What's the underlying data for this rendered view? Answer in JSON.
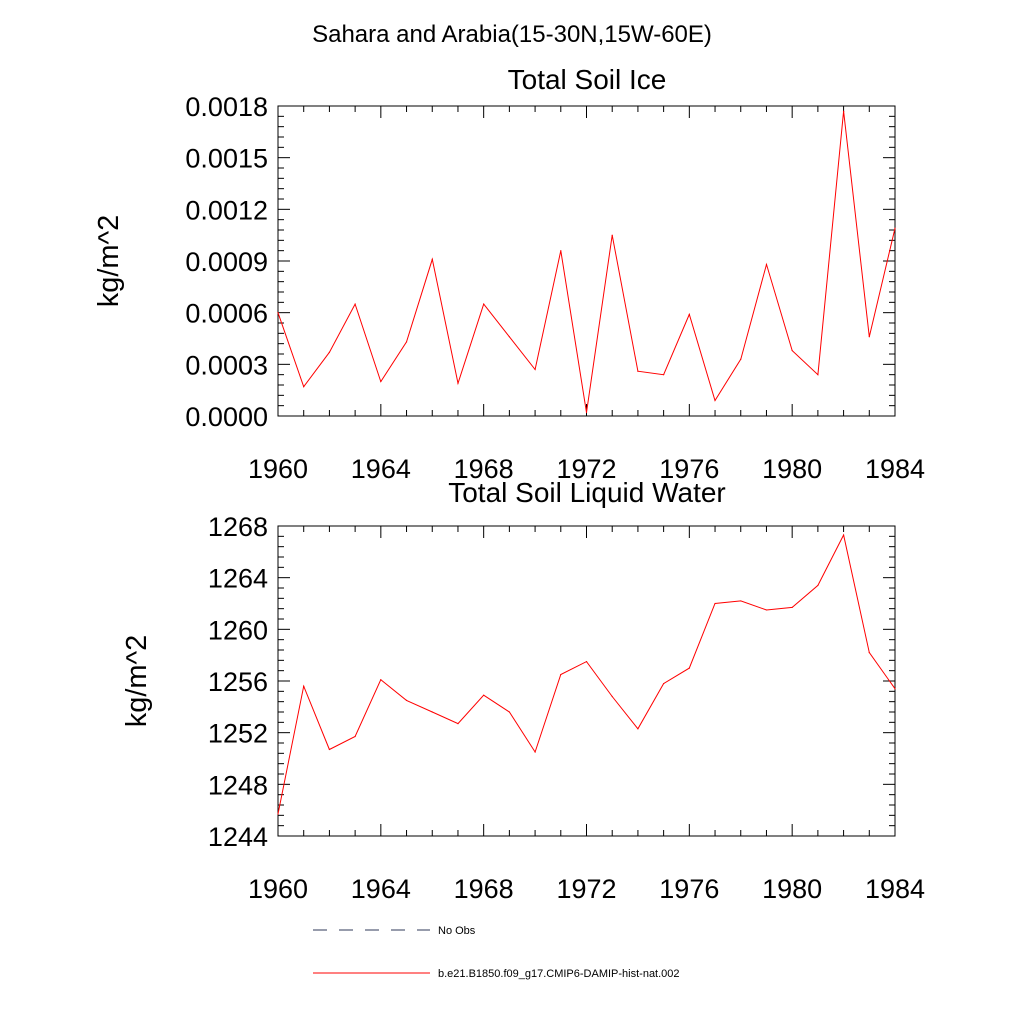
{
  "main_title": "Sahara and Arabia(15-30N,15W-60E)",
  "chart_data": [
    {
      "type": "line",
      "title": "Total Soil Ice",
      "ylabel": "kg/m^2",
      "xlabel": "",
      "xlim": [
        1960,
        1984
      ],
      "ylim": [
        0,
        0.0018
      ],
      "xticks": [
        1960,
        1964,
        1968,
        1972,
        1976,
        1980,
        1984
      ],
      "xtick_labels": [
        "1960",
        "1964",
        "1968",
        "1972",
        "1976",
        "1980",
        "1984"
      ],
      "yticks": [
        0,
        0.0003,
        0.0006,
        0.0009,
        0.0012,
        0.0015,
        0.0018
      ],
      "ytick_labels": [
        "0.0000",
        "0.0003",
        "0.0006",
        "0.0009",
        "0.0012",
        "0.0015",
        "0.0018"
      ],
      "grid": false,
      "series": [
        {
          "name": "b.e21.B1850.f09_g17.CMIP6-DAMIP-hist-nat.002",
          "color": "#ff0000",
          "x": [
            1960,
            1961,
            1962,
            1963,
            1964,
            1965,
            1966,
            1967,
            1968,
            1969,
            1970,
            1971,
            1972,
            1973,
            1974,
            1975,
            1976,
            1977,
            1978,
            1979,
            1980,
            1981,
            1982,
            1983,
            1984
          ],
          "values": [
            0.0006,
            0.00017,
            0.00037,
            0.00065,
            0.0002,
            0.00043,
            0.00091,
            0.00019,
            0.00065,
            0.00046,
            0.00027,
            0.00096,
            2e-05,
            0.00105,
            0.00026,
            0.00024,
            0.00059,
            9e-05,
            0.00033,
            0.00088,
            0.00038,
            0.00024,
            0.00177,
            0.00046,
            0.00109
          ]
        }
      ]
    },
    {
      "type": "line",
      "title": "Total Soil Liquid Water",
      "ylabel": "kg/m^2",
      "xlabel": "",
      "xlim": [
        1960,
        1984
      ],
      "ylim": [
        1244,
        1268
      ],
      "xticks": [
        1960,
        1964,
        1968,
        1972,
        1976,
        1980,
        1984
      ],
      "xtick_labels": [
        "1960",
        "1964",
        "1968",
        "1972",
        "1976",
        "1980",
        "1984"
      ],
      "yticks": [
        1244,
        1248,
        1252,
        1256,
        1260,
        1264,
        1268
      ],
      "ytick_labels": [
        "1244",
        "1248",
        "1252",
        "1256",
        "1260",
        "1264",
        "1268"
      ],
      "grid": false,
      "series": [
        {
          "name": "b.e21.B1850.f09_g17.CMIP6-DAMIP-hist-nat.002",
          "color": "#ff0000",
          "x": [
            1960,
            1961,
            1962,
            1963,
            1964,
            1965,
            1966,
            1967,
            1968,
            1969,
            1970,
            1971,
            1972,
            1973,
            1974,
            1975,
            1976,
            1977,
            1978,
            1979,
            1980,
            1981,
            1982,
            1983,
            1984
          ],
          "values": [
            1245.7,
            1255.6,
            1250.7,
            1251.7,
            1256.1,
            1254.5,
            1253.6,
            1252.7,
            1254.9,
            1253.6,
            1250.5,
            1256.5,
            1257.5,
            1254.8,
            1252.3,
            1255.8,
            1257.0,
            1262.0,
            1262.2,
            1261.5,
            1261.7,
            1263.4,
            1267.3,
            1258.2,
            1255.4
          ]
        }
      ]
    }
  ],
  "legend": {
    "placement": "bottom",
    "items": [
      {
        "label": "No Obs",
        "style": "dashed",
        "color": "#2f3a5a"
      },
      {
        "label": "b.e21.B1850.f09_g17.CMIP6-DAMIP-hist-nat.002",
        "style": "solid",
        "color": "#ff0000"
      }
    ]
  }
}
